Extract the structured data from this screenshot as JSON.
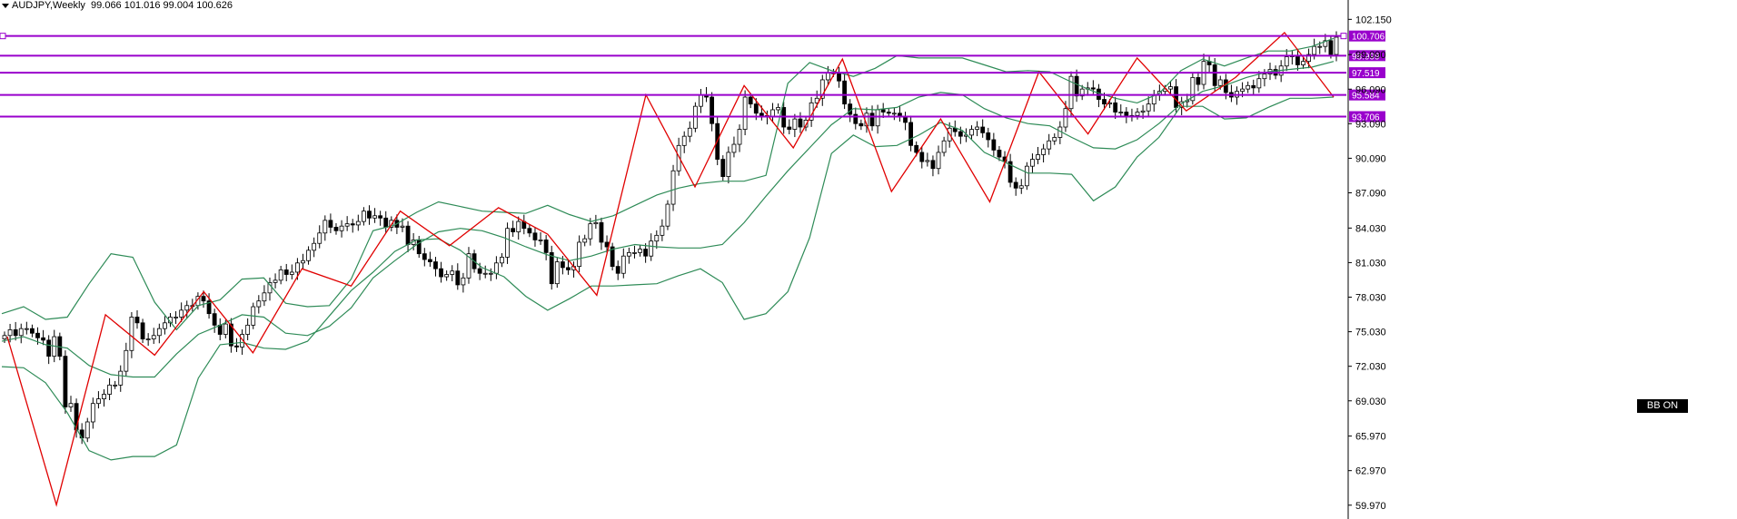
{
  "header": {
    "symbol": "AUDJPY,Weekly",
    "ohlc": "99.066 101.016 99.004 100.626"
  },
  "badge": {
    "label": "BB ON"
  },
  "colors": {
    "level_line": "#9900cc",
    "zigzag": "#e00000",
    "bollinger": "#2e8b57",
    "candle_up": "#ffffff",
    "candle_down": "#000000",
    "candle_border": "#000000"
  },
  "chart_data": {
    "type": "candlestick",
    "timeframe": "Weekly",
    "y_axis_ticks": [
      "102.150",
      "99.090",
      "96.090",
      "93.090",
      "90.090",
      "87.090",
      "84.030",
      "81.030",
      "78.030",
      "75.030",
      "72.030",
      "69.030",
      "65.970",
      "62.970",
      "59.970"
    ],
    "ylim": [
      59.4,
      103.2
    ],
    "horizontal_levels": [
      {
        "label": "100.706",
        "value": 100.706
      },
      {
        "label": "98.999",
        "value": 98.999
      },
      {
        "label": "97.519",
        "value": 97.519
      },
      {
        "label": "95.584",
        "value": 95.584
      },
      {
        "label": "93.706",
        "value": 93.706
      }
    ],
    "zigzag_pivots": [
      74.6,
      60.0,
      76.5,
      73.0,
      78.5,
      73.2,
      80.5,
      79.0,
      85.5,
      82.5,
      85.8,
      83.5,
      78.2,
      95.6,
      87.6,
      96.4,
      91.0,
      98.7,
      87.2,
      93.5,
      86.3,
      97.6,
      92.2,
      98.8,
      94.2,
      97.1,
      101.0,
      95.4
    ],
    "bollinger": {
      "upper": [
        76.6,
        77.2,
        76.1,
        76.3,
        79.2,
        81.8,
        81.5,
        77.6,
        75.2,
        77.3,
        77.8,
        79.6,
        79.7,
        77.5,
        77.2,
        77.3,
        79.6,
        83.8,
        84.3,
        85.4,
        86.3,
        85.9,
        85.5,
        85.4,
        85.3,
        86.0,
        85.2,
        84.6,
        85.1,
        86.0,
        86.9,
        87.5,
        87.9,
        88.1,
        88.1,
        88.6,
        96.6,
        98.4,
        97.7,
        97.2,
        97.9,
        99.0,
        98.8,
        98.8,
        98.8,
        98.2,
        97.6,
        97.7,
        97.6,
        96.7,
        95.9,
        95.3,
        94.9,
        95.7,
        97.7,
        98.7,
        98.1,
        98.8,
        99.4,
        99.4,
        99.8,
        100.5
      ],
      "middle": [
        74.2,
        74.6,
        73.9,
        73.6,
        72.1,
        71.3,
        71.1,
        71.1,
        73.1,
        74.8,
        75.6,
        76.5,
        76.3,
        74.9,
        74.7,
        75.5,
        77.1,
        79.7,
        81.2,
        82.6,
        83.7,
        84.0,
        83.8,
        83.2,
        82.4,
        81.7,
        81.2,
        81.6,
        82.2,
        82.6,
        82.4,
        82.3,
        82.3,
        82.6,
        84.5,
        86.8,
        89.0,
        91.0,
        93.0,
        94.4,
        94.3,
        94.5,
        95.4,
        95.8,
        95.6,
        94.4,
        93.6,
        93.1,
        92.9,
        91.9,
        91.0,
        90.9,
        91.7,
        93.1,
        94.8,
        95.9,
        96.4,
        97.1,
        97.6,
        97.8,
        98.0,
        98.5
      ],
      "lower": [
        72.0,
        71.9,
        70.6,
        68.0,
        64.7,
        63.9,
        64.2,
        64.2,
        65.2,
        71.0,
        73.9,
        74.1,
        73.6,
        73.5,
        74.2,
        76.4,
        78.6,
        80.2,
        82.0,
        83.0,
        83.1,
        82.1,
        80.6,
        79.8,
        78.1,
        76.9,
        77.9,
        79.0,
        79.0,
        79.1,
        79.2,
        79.9,
        80.5,
        79.3,
        76.1,
        76.6,
        78.5,
        83.2,
        90.5,
        92.1,
        91.1,
        91.2,
        92.1,
        93.2,
        92.5,
        90.6,
        89.7,
        88.8,
        88.8,
        88.7,
        86.4,
        87.6,
        90.2,
        91.9,
        94.6,
        94.6,
        93.5,
        93.6,
        94.5,
        95.3,
        95.3,
        95.4
      ]
    },
    "candles_close": [
      74.7,
      75.2,
      74.7,
      75.3,
      75.3,
      74.9,
      74.5,
      74.3,
      72.9,
      74.6,
      72.9,
      68.5,
      68.8,
      66.5,
      65.8,
      67.2,
      68.8,
      69.2,
      69.6,
      70.4,
      70.4,
      71.6,
      73.4,
      76.3,
      75.8,
      74.4,
      74.4,
      74.7,
      75.3,
      75.8,
      76.3,
      76.3,
      76.9,
      77.3,
      77.3,
      78.1,
      77.7,
      76.6,
      75.6,
      74.8,
      75.7,
      73.8,
      73.7,
      74.8,
      75.6,
      77.2,
      77.7,
      78.4,
      79.3,
      79.5,
      80.4,
      80.0,
      80.2,
      81.0,
      81.2,
      82.1,
      82.7,
      83.6,
      84.7,
      84.1,
      83.8,
      84.2,
      84.4,
      84.3,
      84.6,
      85.5,
      84.9,
      85.1,
      84.9,
      84.1,
      84.7,
      84.1,
      84.2,
      82.6,
      83.0,
      81.8,
      81.3,
      81.1,
      80.5,
      79.8,
      80.0,
      80.3,
      79.1,
      79.7,
      81.8,
      80.5,
      80.1,
      80.1,
      80.1,
      81.0,
      81.5,
      84.0,
      83.7,
      84.6,
      84.0,
      83.6,
      83.0,
      83.0,
      81.9,
      79.2,
      81.1,
      80.6,
      80.4,
      80.7,
      82.8,
      83.1,
      84.4,
      84.5,
      82.8,
      82.4,
      80.7,
      80.1,
      81.6,
      81.9,
      81.9,
      82.2,
      81.6,
      82.9,
      83.4,
      84.2,
      86.1,
      89.0,
      91.2,
      92.0,
      92.7,
      94.6,
      95.6,
      95.4,
      93.1,
      90.0,
      88.5,
      90.6,
      91.3,
      92.6,
      95.4,
      94.8,
      94.0,
      93.8,
      93.7,
      94.3,
      94.5,
      92.8,
      92.6,
      93.5,
      92.8,
      93.4,
      94.9,
      95.3,
      96.9,
      97.5,
      97.5,
      96.8,
      94.8,
      93.9,
      93.1,
      92.9,
      94.0,
      92.9,
      94.3,
      94.1,
      94.0,
      94.0,
      93.7,
      93.2,
      91.2,
      90.6,
      89.8,
      89.9,
      89.2,
      90.6,
      91.6,
      92.7,
      92.4,
      92.0,
      92.1,
      92.6,
      92.8,
      92.3,
      91.7,
      90.8,
      90.2,
      89.8,
      88.0,
      87.5,
      87.7,
      89.4,
      90.0,
      90.4,
      90.9,
      91.6,
      91.9,
      92.8,
      94.4,
      97.2,
      95.5,
      96.1,
      96.2,
      96.1,
      95.2,
      94.8,
      94.9,
      94.1,
      94.1,
      93.8,
      93.8,
      94.1,
      94.2,
      94.8,
      95.6,
      95.9,
      96.1,
      96.3,
      94.5,
      95.0,
      95.1,
      97.1,
      96.5,
      98.5,
      98.2,
      96.4,
      96.9,
      95.8,
      95.4,
      95.9,
      96.1,
      96.4,
      96.2,
      97.0,
      97.4,
      97.8,
      97.3,
      98.1,
      98.9,
      99.0,
      98.2,
      98.5,
      99.1,
      99.8,
      99.8,
      100.3,
      99.1,
      100.6
    ]
  }
}
